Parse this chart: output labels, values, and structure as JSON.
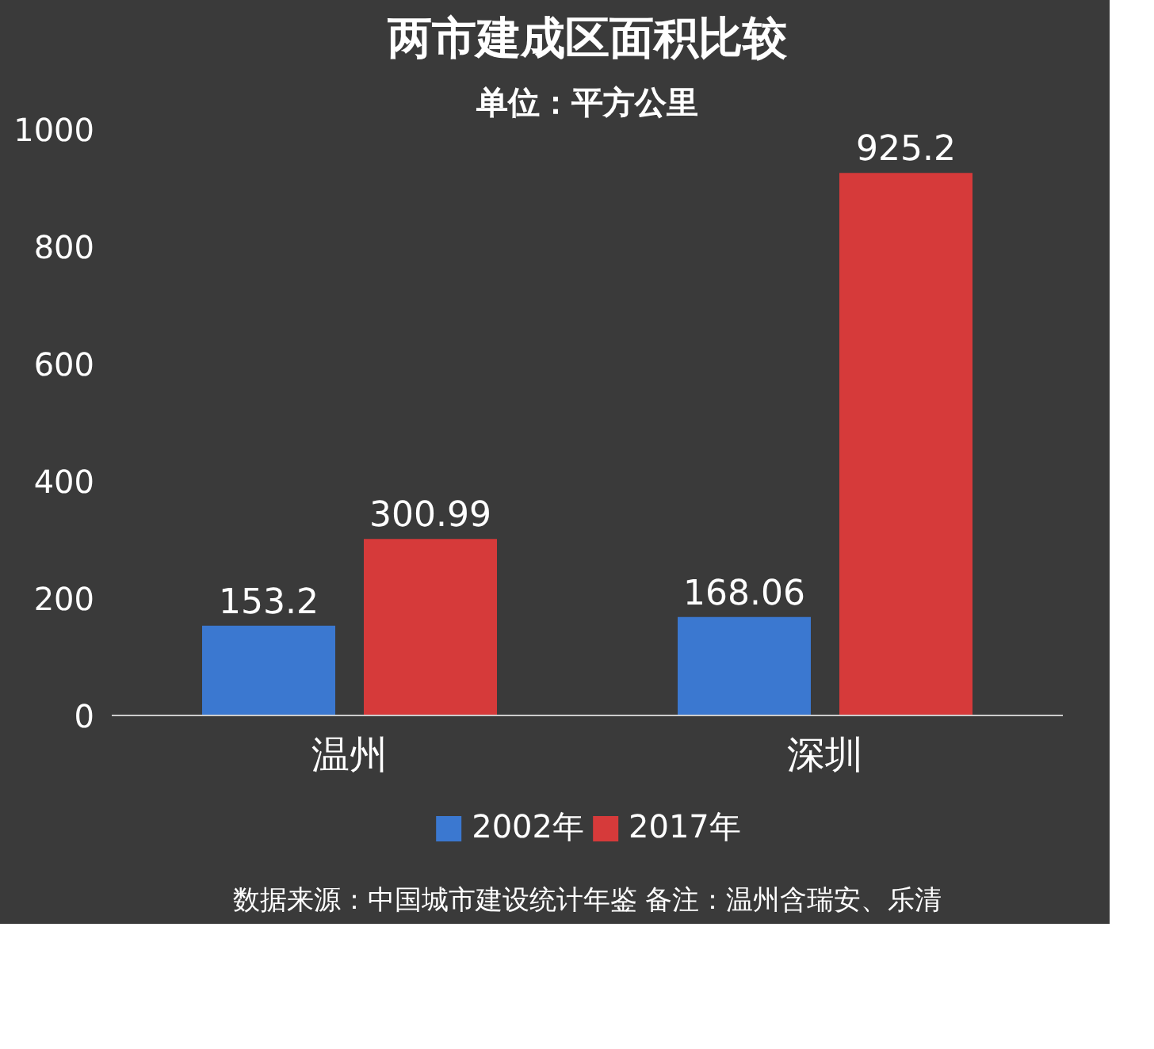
{
  "chart_data": {
    "type": "bar",
    "title": "两市建成区面积比较",
    "subtitle": "单位：平方公里",
    "categories": [
      "温州",
      "深圳"
    ],
    "series": [
      {
        "name": "2002年",
        "color": "#3b78d0",
        "values": [
          153.2,
          168.06
        ]
      },
      {
        "name": "2017年",
        "color": "#d63a3a",
        "values": [
          300.99,
          925.2
        ]
      }
    ],
    "ylim": [
      0,
      1000
    ],
    "yticks": [
      0,
      200,
      400,
      600,
      800,
      1000
    ],
    "grid": false,
    "legend": "bottom",
    "data_labels": true,
    "annotations": [
      "数据来源：中国城市建设统计年鉴 备注：温州含瑞安、乐清"
    ]
  }
}
